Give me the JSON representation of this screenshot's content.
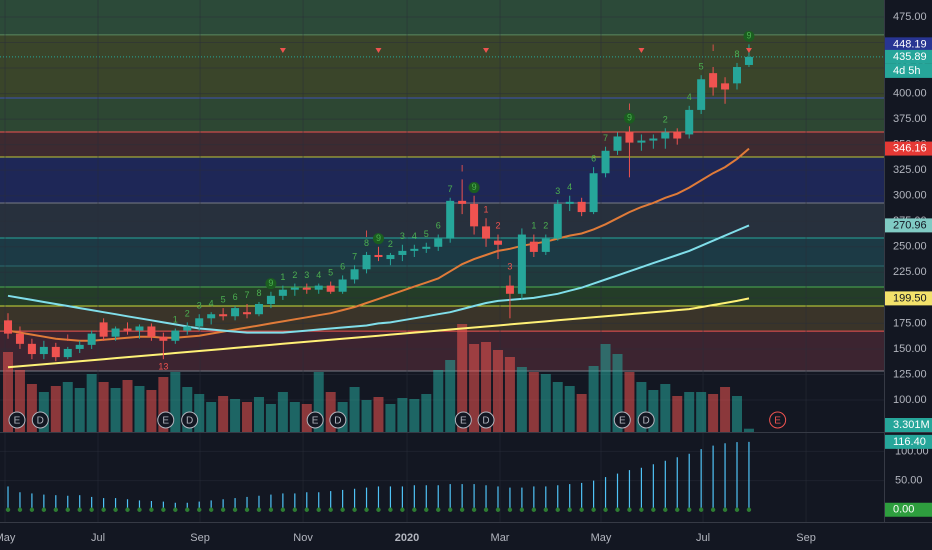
{
  "chart_data": {
    "type": "candlestick",
    "xlim": [
      -0.67,
      73.3
    ],
    "xticks": [
      {
        "value": -0.25,
        "label": "May"
      },
      {
        "value": 7.53,
        "label": "Jul"
      },
      {
        "value": 16.07,
        "label": "Sep"
      },
      {
        "value": 24.69,
        "label": "Nov"
      },
      {
        "value": 33.39,
        "label": "2020"
      },
      {
        "value": 41.17,
        "label": "Mar"
      },
      {
        "value": 49.62,
        "label": "May"
      },
      {
        "value": 58.16,
        "label": "Jul"
      },
      {
        "value": 66.78,
        "label": "Sep"
      }
    ],
    "ylim": [
      68.7,
      491.6
    ],
    "yticks": [
      {
        "value": 100,
        "label": "100.00"
      },
      {
        "value": 125,
        "label": "125.00"
      },
      {
        "value": 150,
        "label": "150.00"
      },
      {
        "value": 175,
        "label": "175.00"
      },
      {
        "value": 200,
        "label": "200.00"
      },
      {
        "value": 225,
        "label": "225.00"
      },
      {
        "value": 250,
        "label": "250.00"
      },
      {
        "value": 275,
        "label": "275.00"
      },
      {
        "value": 300,
        "label": "300.00"
      },
      {
        "value": 325,
        "label": "325.00"
      },
      {
        "value": 350,
        "label": "350.00"
      },
      {
        "value": 375,
        "label": "375.00"
      },
      {
        "value": 400,
        "label": "400.00"
      },
      {
        "value": 425,
        "label": "425.00"
      },
      {
        "value": 450,
        "label": "450.00"
      },
      {
        "value": 475,
        "label": "475.00"
      }
    ],
    "up_color": "#26a69a",
    "down_color": "#ef5350",
    "grid": true,
    "open": [
      178,
      165,
      155,
      145,
      152,
      142,
      150,
      154,
      176,
      162,
      170,
      168,
      172,
      162,
      158,
      168,
      172,
      180,
      184,
      182,
      186,
      184,
      194,
      202,
      208,
      210,
      208,
      212,
      206,
      218,
      228,
      242,
      238,
      242,
      246,
      248,
      250,
      258,
      295,
      292,
      270,
      256,
      212,
      204,
      255,
      245,
      258,
      292,
      294,
      284,
      322,
      344,
      362,
      352,
      354,
      356,
      362,
      360,
      384,
      420,
      410,
      410,
      428
    ],
    "high": [
      185,
      172,
      160,
      158,
      156,
      152,
      158,
      168,
      180,
      172,
      176,
      174,
      175,
      166,
      170,
      176,
      184,
      186,
      190,
      192,
      194,
      196,
      206,
      212,
      214,
      214,
      214,
      216,
      222,
      232,
      245,
      250,
      244,
      252,
      252,
      254,
      262,
      298,
      316,
      300,
      278,
      262,
      222,
      268,
      262,
      262,
      296,
      300,
      298,
      328,
      348,
      362,
      368,
      360,
      360,
      366,
      366,
      388,
      418,
      426,
      416,
      430,
      448.19
    ],
    "low": [
      160,
      150,
      140,
      140,
      138,
      140,
      146,
      150,
      158,
      158,
      164,
      160,
      158,
      140,
      155,
      164,
      168,
      174,
      178,
      178,
      180,
      182,
      190,
      198,
      202,
      204,
      204,
      204,
      204,
      214,
      224,
      236,
      232,
      236,
      240,
      244,
      246,
      254,
      282,
      262,
      250,
      238,
      180,
      198,
      240,
      242,
      256,
      285,
      280,
      282,
      318,
      340,
      318,
      344,
      346,
      346,
      350,
      356,
      380,
      398,
      390,
      404,
      426
    ],
    "close": [
      165,
      155,
      145,
      152,
      142,
      150,
      154,
      165,
      162,
      170,
      168,
      172,
      162,
      158,
      168,
      172,
      180,
      184,
      182,
      190,
      184,
      194,
      202,
      208,
      210,
      208,
      212,
      206,
      218,
      228,
      242,
      240,
      242,
      246,
      248,
      250,
      258,
      295,
      292,
      270,
      258,
      252,
      204,
      262,
      245,
      258,
      292,
      294,
      284,
      322,
      344,
      358,
      352,
      354,
      356,
      362,
      356,
      384,
      414,
      406,
      404,
      426,
      435.89
    ],
    "volume": [
      80,
      62,
      48,
      40,
      46,
      50,
      44,
      58,
      50,
      44,
      52,
      46,
      42,
      55,
      60,
      45,
      38,
      30,
      36,
      33,
      30,
      35,
      28,
      40,
      30,
      28,
      60,
      40,
      30,
      45,
      32,
      35,
      28,
      34,
      33,
      38,
      62,
      72,
      108,
      88,
      90,
      82,
      75,
      65,
      60,
      58,
      50,
      46,
      38,
      66,
      88,
      78,
      60,
      50,
      42,
      48,
      36,
      40,
      40,
      38,
      45,
      36,
      3.301
    ],
    "volume_ylim": [
      0,
      110
    ],
    "series": [
      {
        "color": "#e07b39",
        "values": [
          168,
          166,
          164,
          162,
          160,
          159,
          158,
          158,
          159,
          160,
          161,
          162,
          162,
          161,
          161,
          162,
          163,
          165,
          167,
          169,
          171,
          173,
          175,
          177,
          179,
          181,
          183,
          185,
          188,
          191,
          195,
          199,
          203,
          207,
          211,
          215,
          219,
          226,
          233,
          238,
          242,
          246,
          248,
          251,
          253,
          255,
          258,
          261,
          263,
          267,
          272,
          278,
          284,
          289,
          293,
          298,
          302,
          308,
          315,
          322,
          328,
          336,
          346.16
        ]
      },
      {
        "color": "#80deea",
        "values": [
          202,
          200,
          198,
          196,
          194,
          192,
          190,
          188,
          186,
          184,
          182,
          180,
          178,
          176,
          174,
          172,
          170,
          169,
          168,
          167,
          166,
          166,
          166,
          166,
          167,
          168,
          169,
          170,
          171,
          172,
          173,
          175,
          176,
          178,
          180,
          182,
          184,
          186,
          189,
          192,
          195,
          197,
          198,
          199,
          200,
          202,
          204,
          207,
          210,
          214,
          218,
          222,
          226,
          230,
          234,
          238,
          242,
          246,
          251,
          256,
          261,
          266,
          270.96
        ]
      },
      {
        "color": "#fff176",
        "values": [
          132,
          133,
          134,
          135,
          136,
          137,
          138,
          139,
          140,
          141,
          142,
          143,
          144,
          145,
          146,
          147,
          148,
          149,
          150,
          151,
          152,
          153,
          154,
          155,
          156,
          157,
          158,
          159,
          160,
          161,
          162,
          163,
          164,
          165,
          166,
          167,
          168,
          169,
          170,
          171,
          172,
          173,
          174,
          175,
          176,
          177,
          178,
          179,
          180,
          181,
          182,
          183,
          184,
          185,
          186,
          187,
          188,
          189,
          191,
          193,
          195,
          197,
          199.5
        ]
      }
    ],
    "top_band_color": "#2c4a39",
    "levels": [
      {
        "value": 457.4,
        "color": "#5d8a5e",
        "fill": "#3a452a"
      },
      {
        "value": 395.7,
        "color": "#3f51b5",
        "fill": "#2d4733"
      },
      {
        "value": 362.4,
        "color": "#ef5350",
        "fill": "#3e2a30"
      },
      {
        "value": 337.9,
        "color": "#c0ca33",
        "fill": "#1e2757"
      },
      {
        "value": 292.9,
        "color": "#787b86",
        "fill": "#27303d"
      },
      {
        "value": 258.6,
        "color": "#26a69a",
        "fill": "#1c3a45"
      },
      {
        "value": 231.2,
        "color": "#2b6a70",
        "fill": "#1f3a3d"
      },
      {
        "value": 210.6,
        "color": "#4caf50",
        "fill": "#243d28"
      },
      {
        "value": 192.0,
        "color": "#cddc39",
        "fill": "#3a3429"
      },
      {
        "value": 167.5,
        "color": "#ef5350",
        "fill": "#3c2430"
      },
      {
        "value": 128.4,
        "color": "#787b86",
        "fill": "#131722"
      }
    ],
    "annotations": [
      {
        "x": 14,
        "y": 178,
        "label": "1",
        "color": "#4caf50"
      },
      {
        "x": 15,
        "y": 184,
        "label": "2",
        "color": "#4caf50"
      },
      {
        "x": 16,
        "y": 192,
        "label": "3",
        "color": "#4caf50"
      },
      {
        "x": 17,
        "y": 194,
        "label": "4",
        "color": "#4caf50"
      },
      {
        "x": 18,
        "y": 198,
        "label": "5",
        "color": "#4caf50"
      },
      {
        "x": 19,
        "y": 200,
        "label": "6",
        "color": "#4caf50"
      },
      {
        "x": 20,
        "y": 202,
        "label": "7",
        "color": "#4caf50"
      },
      {
        "x": 21,
        "y": 204,
        "label": "8",
        "color": "#4caf50"
      },
      {
        "x": 22,
        "y": 214,
        "label": "9",
        "color": "#4caf50",
        "circle": true
      },
      {
        "x": 23,
        "y": 220,
        "label": "1",
        "color": "#4caf50"
      },
      {
        "x": 24,
        "y": 222,
        "label": "2",
        "color": "#4caf50"
      },
      {
        "x": 25,
        "y": 222,
        "label": "3",
        "color": "#4caf50"
      },
      {
        "x": 26,
        "y": 222,
        "label": "4",
        "color": "#4caf50"
      },
      {
        "x": 27,
        "y": 224,
        "label": "5",
        "color": "#4caf50"
      },
      {
        "x": 28,
        "y": 230,
        "label": "6",
        "color": "#4caf50"
      },
      {
        "x": 29,
        "y": 240,
        "label": "7",
        "color": "#4caf50"
      },
      {
        "x": 30,
        "y": 253,
        "label": "8",
        "color": "#4caf50"
      },
      {
        "x": 31,
        "y": 258,
        "label": "9",
        "color": "#4caf50",
        "circle": true
      },
      {
        "x": 32,
        "y": 252,
        "label": "2",
        "color": "#4caf50"
      },
      {
        "x": 33,
        "y": 260,
        "label": "3",
        "color": "#4caf50"
      },
      {
        "x": 34,
        "y": 260,
        "label": "4",
        "color": "#4caf50"
      },
      {
        "x": 35,
        "y": 262,
        "label": "5",
        "color": "#4caf50"
      },
      {
        "x": 36,
        "y": 270,
        "label": "6",
        "color": "#4caf50"
      },
      {
        "x": 37,
        "y": 306,
        "label": "7",
        "color": "#4caf50"
      },
      {
        "x": 39,
        "y": 308,
        "label": "9",
        "color": "#4caf50",
        "circle": true
      },
      {
        "x": 44,
        "y": 270,
        "label": "1",
        "color": "#4caf50"
      },
      {
        "x": 45,
        "y": 270,
        "label": "2",
        "color": "#4caf50"
      },
      {
        "x": 46,
        "y": 304,
        "label": "3",
        "color": "#4caf50"
      },
      {
        "x": 47,
        "y": 308,
        "label": "4",
        "color": "#4caf50"
      },
      {
        "x": 49,
        "y": 336,
        "label": "6",
        "color": "#4caf50"
      },
      {
        "x": 50,
        "y": 356,
        "label": "7",
        "color": "#4caf50"
      },
      {
        "x": 52,
        "y": 376,
        "label": "9",
        "color": "#4caf50",
        "circle": true
      },
      {
        "x": 55,
        "y": 374,
        "label": "2",
        "color": "#4caf50"
      },
      {
        "x": 57,
        "y": 396,
        "label": "4",
        "color": "#4caf50"
      },
      {
        "x": 58,
        "y": 426,
        "label": "5",
        "color": "#4caf50"
      },
      {
        "x": 61,
        "y": 438,
        "label": "8",
        "color": "#4caf50"
      },
      {
        "x": 62,
        "y": 456,
        "label": "9",
        "color": "#4caf50",
        "circle": true
      },
      {
        "x": 13,
        "y": 132,
        "label": "13",
        "color": "#ef5350"
      },
      {
        "x": 5,
        "y": 160,
        "label": "I",
        "color": "#ef5350"
      },
      {
        "x": 30,
        "y": 262,
        "label": "I",
        "color": "#ef5350"
      },
      {
        "x": 38,
        "y": 326,
        "label": "I",
        "color": "#ef5350"
      },
      {
        "x": 52,
        "y": 386,
        "label": "I",
        "color": "#ef5350"
      },
      {
        "x": 59,
        "y": 444,
        "label": "I",
        "color": "#ef5350"
      },
      {
        "x": 40,
        "y": 286,
        "label": "1",
        "color": "#ef5350"
      },
      {
        "x": 41,
        "y": 270,
        "label": "2",
        "color": "#ef5350"
      },
      {
        "x": 42,
        "y": 230,
        "label": "3",
        "color": "#ef5350"
      }
    ],
    "sell_signals": [
      23,
      31,
      40,
      53,
      62
    ],
    "events": [
      {
        "x": 0.75,
        "label": "E"
      },
      {
        "x": 2.7,
        "label": "D"
      },
      {
        "x": 13.2,
        "label": "E"
      },
      {
        "x": 15.2,
        "label": "D"
      },
      {
        "x": 25.7,
        "label": "E"
      },
      {
        "x": 27.6,
        "label": "D"
      },
      {
        "x": 38.1,
        "label": "E"
      },
      {
        "x": 40,
        "label": "D"
      },
      {
        "x": 51.4,
        "label": "E"
      },
      {
        "x": 53.4,
        "label": "D"
      },
      {
        "x": 64.4,
        "label": "E",
        "color": "#ef5350"
      }
    ],
    "badges": [
      {
        "value": 448.19,
        "color": "#283593"
      },
      {
        "value": 435.89,
        "color": "#26a69a"
      },
      {
        "value": 346.16,
        "color": "#e53935"
      },
      {
        "value": 270.96,
        "color": "#80cbc4",
        "text_color": "#131722"
      },
      {
        "value": 199.5,
        "label": "199.50",
        "color": "#f3e26b",
        "text_color": "#131722"
      }
    ],
    "countdown": "4d 5h",
    "volume_badge": {
      "value": 3.301,
      "label": "3.301M",
      "color": "#26a69a"
    },
    "indicator": {
      "color": "#4fc3f7",
      "ylim": [
        -21,
        131.6
      ],
      "yticks": [
        {
          "value": 50,
          "label": "50.00"
        },
        {
          "value": 100,
          "label": "100.00"
        }
      ],
      "values": [
        40,
        30,
        28,
        26,
        25,
        24,
        25,
        22,
        20,
        20,
        18,
        16,
        15,
        14,
        12,
        12,
        14,
        16,
        18,
        20,
        22,
        24,
        26,
        28,
        28,
        30,
        30,
        32,
        34,
        36,
        38,
        40,
        40,
        40,
        42,
        42,
        42,
        44,
        44,
        44,
        42,
        40,
        38,
        38,
        40,
        40,
        42,
        44,
        46,
        50,
        56,
        62,
        68,
        72,
        78,
        84,
        90,
        96,
        104,
        110,
        114,
        116,
        116.4
      ],
      "signal_color": "#2e7d32",
      "badges": [
        {
          "value": 116.4,
          "label": "116.40",
          "color": "#26a69a"
        },
        {
          "value": 0,
          "label": "0.00",
          "color": "#2e9e3e"
        }
      ]
    }
  }
}
